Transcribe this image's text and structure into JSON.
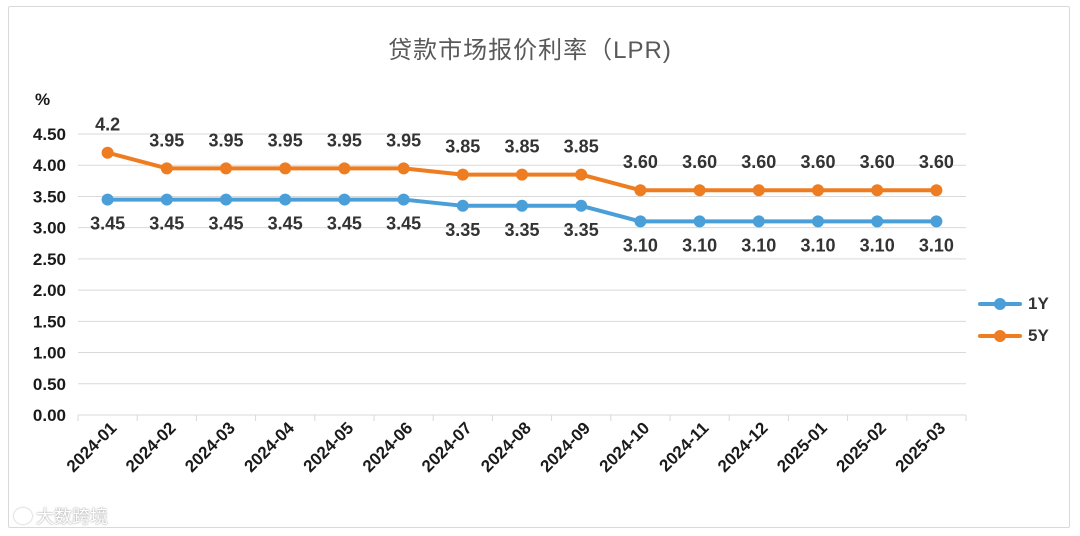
{
  "colors": {
    "series_1y": "#4a9fd8",
    "series_5y": "#ee7d22",
    "grid": "#d9d9d9",
    "text": "#333333"
  },
  "chart_data": {
    "type": "line",
    "title": "贷款市场报价利率（LPR)",
    "ylabel": "%",
    "xlabel": "",
    "ylim": [
      0,
      4.5
    ],
    "yticks": [
      "0.00",
      "0.50",
      "1.00",
      "1.50",
      "2.00",
      "2.50",
      "3.00",
      "3.50",
      "4.00",
      "4.50"
    ],
    "categories": [
      "2024-01",
      "2024-02",
      "2024-03",
      "2024-04",
      "2024-05",
      "2024-06",
      "2024-07",
      "2024-08",
      "2024-09",
      "2024-10",
      "2024-11",
      "2024-12",
      "2025-01",
      "2025-02",
      "2025-03"
    ],
    "legend_position": "right",
    "series": [
      {
        "name": "1Y",
        "values": [
          3.45,
          3.45,
          3.45,
          3.45,
          3.45,
          3.45,
          3.35,
          3.35,
          3.35,
          3.1,
          3.1,
          3.1,
          3.1,
          3.1,
          3.1
        ],
        "labels": [
          "3.45",
          "3.45",
          "3.45",
          "3.45",
          "3.45",
          "3.45",
          "3.35",
          "3.35",
          "3.35",
          "3.10",
          "3.10",
          "3.10",
          "3.10",
          "3.10",
          "3.10"
        ]
      },
      {
        "name": "5Y",
        "values": [
          4.2,
          3.95,
          3.95,
          3.95,
          3.95,
          3.95,
          3.85,
          3.85,
          3.85,
          3.6,
          3.6,
          3.6,
          3.6,
          3.6,
          3.6
        ],
        "labels": [
          "4.2",
          "3.95",
          "3.95",
          "3.95",
          "3.95",
          "3.95",
          "3.85",
          "3.85",
          "3.85",
          "3.60",
          "3.60",
          "3.60",
          "3.60",
          "3.60",
          "3.60"
        ]
      }
    ]
  },
  "watermark": {
    "text": "大数跨境"
  }
}
